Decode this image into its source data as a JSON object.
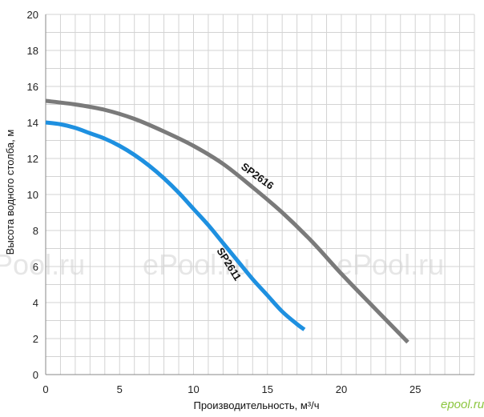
{
  "chart_data": {
    "type": "line",
    "xlabel": "Производительность, м³/ч",
    "ylabel": "Высота водного столба, м",
    "xlim": [
      0,
      29
    ],
    "ylim": [
      0,
      20
    ],
    "x_ticks": [
      0,
      5,
      10,
      15,
      20,
      25
    ],
    "y_ticks": [
      0,
      2,
      4,
      6,
      8,
      10,
      12,
      14,
      16,
      18,
      20
    ],
    "grid": true,
    "series": [
      {
        "name": "SP2616",
        "color": "#7a7a7a",
        "x": [
          0,
          2,
          4,
          6,
          8,
          10,
          12,
          14,
          16,
          18,
          20,
          22,
          24.5
        ],
        "y": [
          15.2,
          15.0,
          14.7,
          14.2,
          13.5,
          12.7,
          11.7,
          10.4,
          9.0,
          7.4,
          5.6,
          3.9,
          1.8
        ]
      },
      {
        "name": "SP2611",
        "color": "#1e90e0",
        "x": [
          0,
          1,
          2,
          3,
          4,
          5,
          6,
          7,
          8,
          9,
          10,
          11,
          12,
          13,
          14,
          15,
          16,
          17,
          17.5
        ],
        "y": [
          14.0,
          13.9,
          13.7,
          13.4,
          13.1,
          12.7,
          12.2,
          11.6,
          10.9,
          10.1,
          9.2,
          8.3,
          7.3,
          6.3,
          5.3,
          4.4,
          3.5,
          2.8,
          2.5
        ]
      }
    ],
    "watermark": "ePool.ru",
    "brand": "epool.ru"
  }
}
